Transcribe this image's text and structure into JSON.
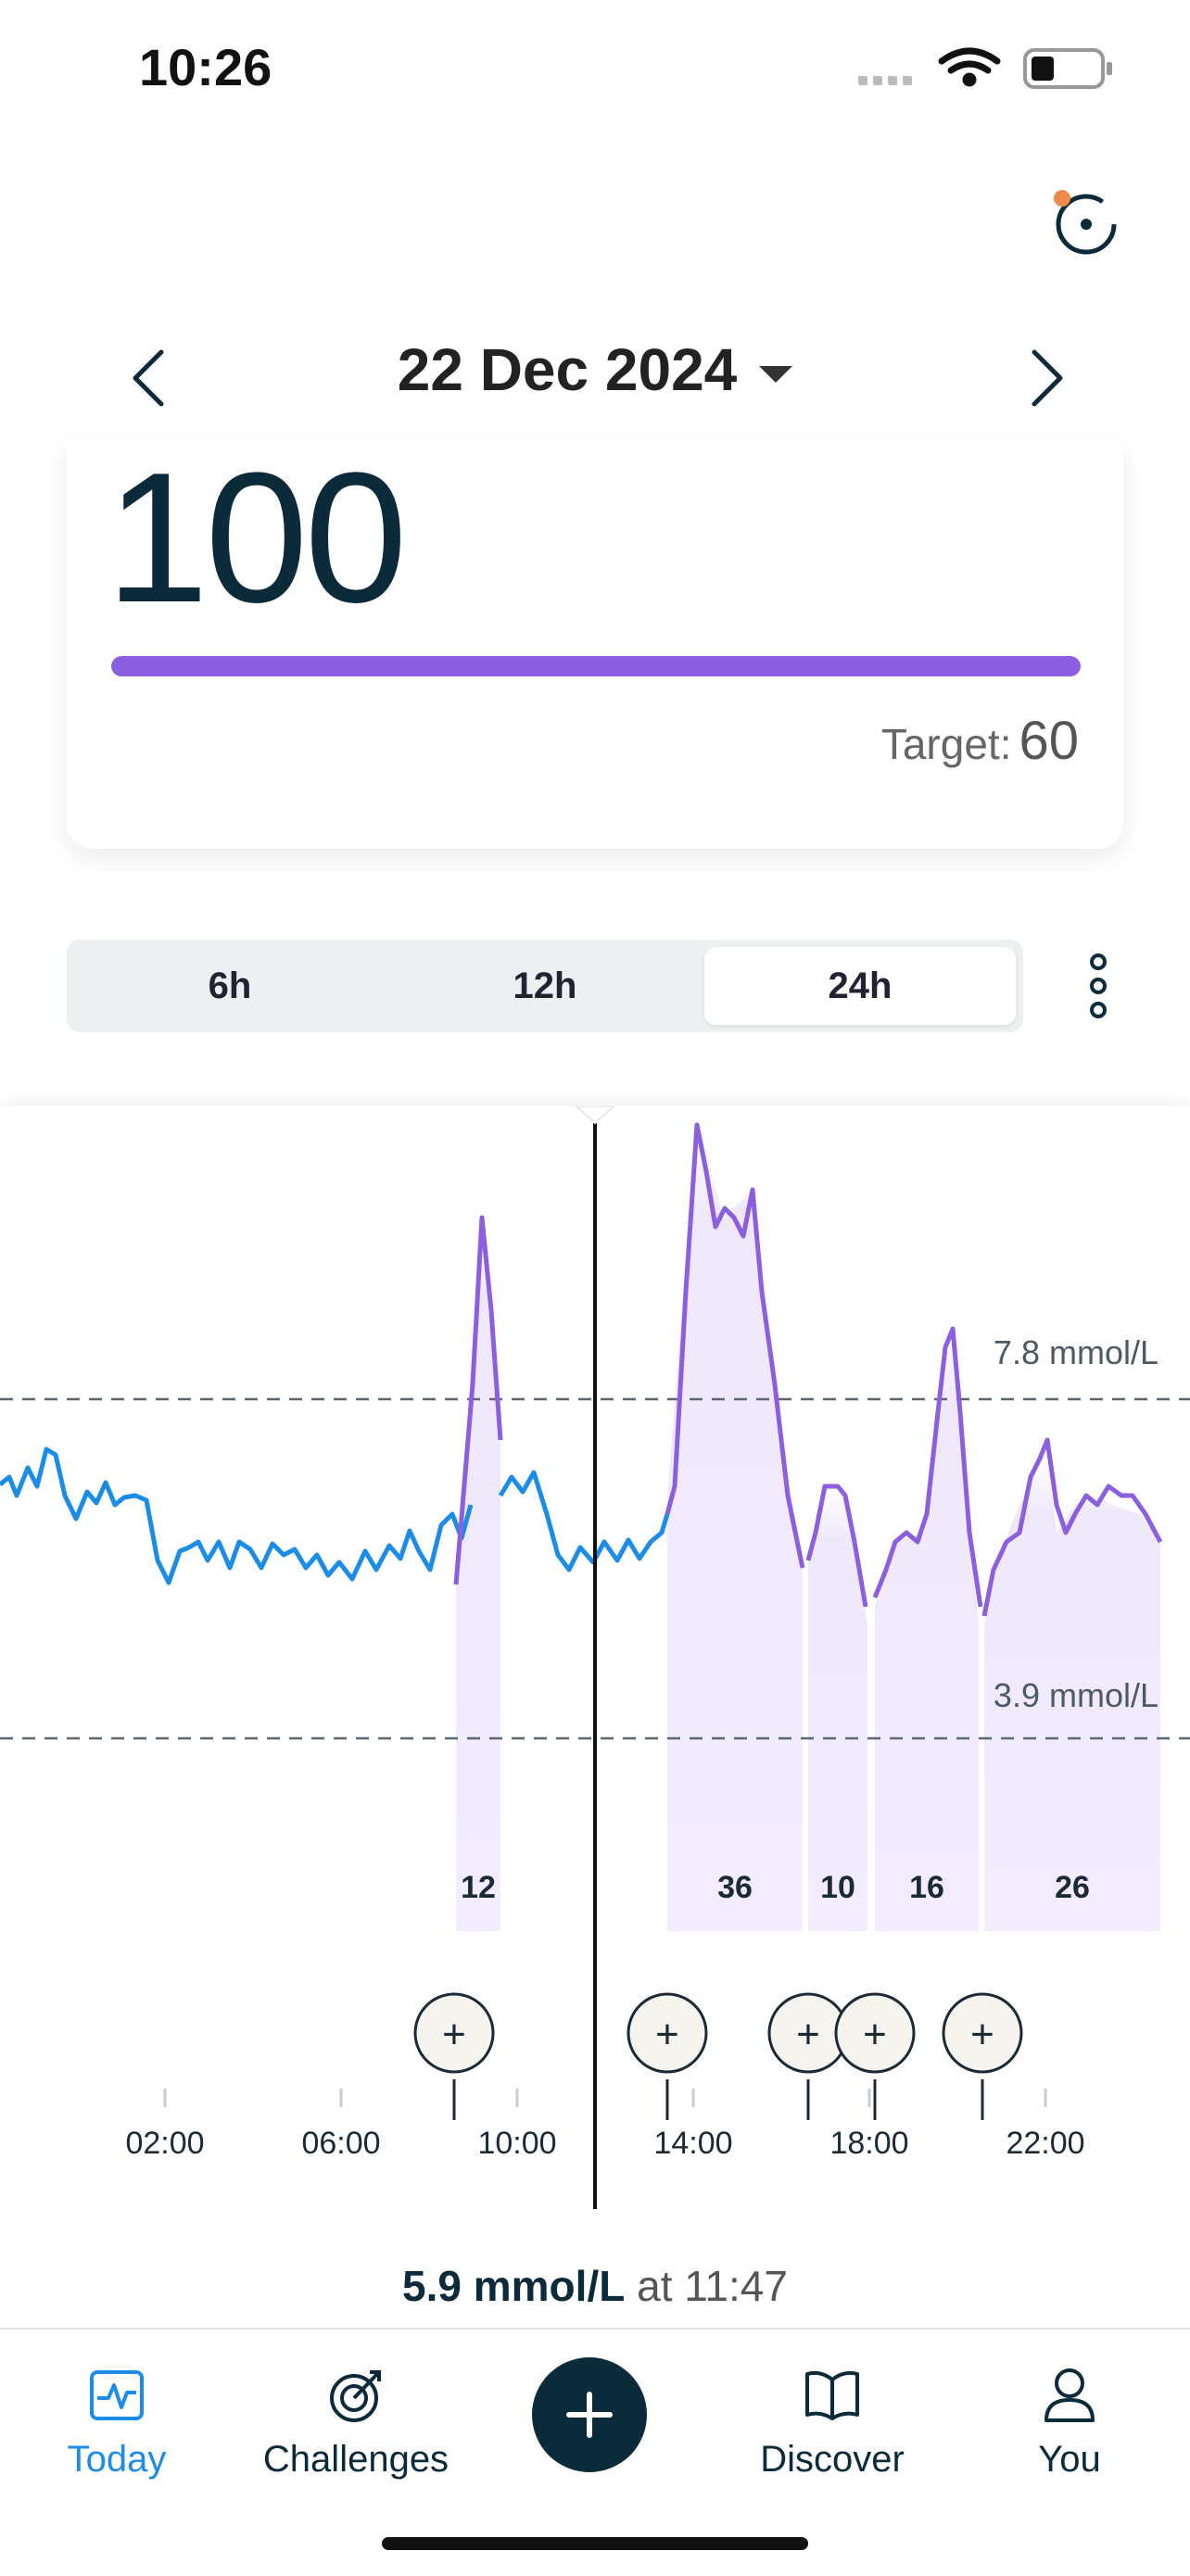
{
  "status_bar": {
    "time": "10:26"
  },
  "date_nav": {
    "date": "22 Dec 2024"
  },
  "score_card": {
    "value": "100",
    "progress": 1.0,
    "target_label": "Target:",
    "target_value": "60"
  },
  "range_tabs": [
    {
      "label": "6h",
      "active": false
    },
    {
      "label": "12h",
      "active": false
    },
    {
      "label": "24h",
      "active": true
    }
  ],
  "glucose_chart": {
    "upper_limit_label": "7.8 mmol/L",
    "lower_limit_label": "3.9 mmol/L",
    "x_ticks": [
      "02:00",
      "06:00",
      "10:00",
      "14:00",
      "18:00",
      "22:00"
    ],
    "spike_scores": [
      "12",
      "36",
      "10",
      "16",
      "26"
    ]
  },
  "reading": {
    "value": "5.9 mmol/L",
    "suffix": "at 11:47"
  },
  "nav": {
    "today": "Today",
    "challenges": "Challenges",
    "discover": "Discover",
    "you": "You"
  },
  "colors": {
    "accent": "#1b8ce8",
    "spike": "#8b5fe0",
    "line": "#1b8ce8",
    "dark": "#0b2b3b"
  },
  "icons": [
    "chevron-left-icon",
    "chevron-right-icon",
    "sync-icon",
    "more-vertical-icon",
    "plus-icon",
    "activity-icon",
    "target-icon",
    "book-icon",
    "person-icon"
  ]
}
